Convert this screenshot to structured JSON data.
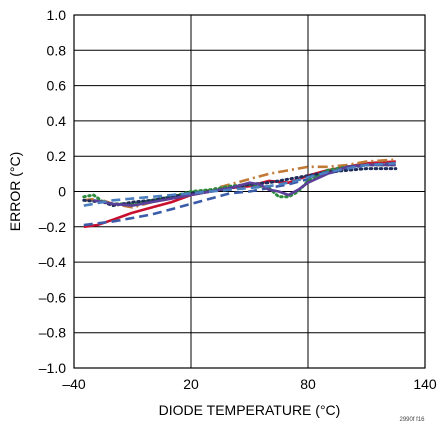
{
  "chart_data": {
    "type": "line",
    "xlabel": "DIODE TEMPERATURE (°C)",
    "ylabel": "ERROR (°C)",
    "xlim": [
      -40,
      140
    ],
    "ylim": [
      -1.0,
      1.0
    ],
    "xticks": [
      -40,
      20,
      80,
      140
    ],
    "xtick_labels": [
      "–40",
      "20",
      "80",
      "140"
    ],
    "yticks": [
      1.0,
      0.8,
      0.6,
      0.4,
      0.2,
      0,
      -0.2,
      -0.4,
      -0.6,
      -0.8,
      -1.0
    ],
    "ytick_labels": [
      "1.0",
      "0.8",
      "0.6",
      "0.4",
      "0.2",
      "0",
      "–0.2",
      "–0.4",
      "–0.6",
      "–0.8",
      "–1.0"
    ],
    "grid": true,
    "watermark": "2990f f16",
    "series": [
      {
        "color": "#c8102e",
        "style": "solid",
        "x": [
          -35,
          -28,
          -20,
          -10,
          0,
          10,
          20,
          30,
          40,
          50,
          60,
          70,
          80,
          90,
          100,
          110,
          125
        ],
        "y": [
          -0.2,
          -0.19,
          -0.16,
          -0.12,
          -0.09,
          -0.06,
          -0.02,
          0.0,
          0.02,
          0.03,
          0.06,
          0.05,
          0.09,
          0.12,
          0.14,
          0.16,
          0.17
        ]
      },
      {
        "color": "#3a5ba8",
        "style": "dashed",
        "x": [
          -35,
          -20,
          -10,
          0,
          10,
          20,
          30,
          40,
          50,
          60,
          70,
          80,
          90,
          100,
          110,
          125
        ],
        "y": [
          -0.19,
          -0.17,
          -0.15,
          -0.13,
          -0.1,
          -0.07,
          -0.04,
          -0.01,
          0.0,
          0.02,
          0.04,
          0.07,
          0.1,
          0.13,
          0.15,
          0.16
        ]
      },
      {
        "color": "#c07a35",
        "style": "dashdot",
        "x": [
          -35,
          -28,
          -20,
          -10,
          0,
          10,
          20,
          30,
          40,
          50,
          60,
          70,
          80,
          90,
          100,
          110,
          125
        ],
        "y": [
          -0.05,
          -0.04,
          -0.07,
          -0.09,
          -0.06,
          -0.04,
          -0.02,
          0.01,
          0.04,
          0.07,
          0.1,
          0.12,
          0.14,
          0.14,
          0.15,
          0.17,
          0.18
        ]
      },
      {
        "color": "#2e8b3e",
        "style": "dotted",
        "x": [
          -35,
          -30,
          -25,
          -20,
          -10,
          0,
          10,
          20,
          30,
          40,
          50,
          60,
          65,
          70,
          75,
          80,
          90,
          100,
          110,
          125
        ],
        "y": [
          -0.03,
          -0.02,
          -0.06,
          -0.07,
          -0.07,
          -0.05,
          -0.03,
          0.0,
          0.01,
          0.03,
          0.04,
          0.02,
          -0.03,
          -0.03,
          0.0,
          0.06,
          0.12,
          0.14,
          0.15,
          0.15
        ]
      },
      {
        "color": "#1f2d5c",
        "style": "dotted",
        "x": [
          -35,
          -25,
          -20,
          -10,
          0,
          10,
          20,
          30,
          40,
          50,
          60,
          70,
          80,
          90,
          100,
          110,
          125
        ],
        "y": [
          -0.05,
          -0.06,
          -0.08,
          -0.06,
          -0.05,
          -0.03,
          -0.01,
          0.0,
          0.02,
          0.04,
          0.05,
          0.07,
          0.09,
          0.11,
          0.12,
          0.13,
          0.13
        ]
      },
      {
        "color": "#5b3f9a",
        "style": "solid",
        "x": [
          -30,
          -20,
          -10,
          0,
          10,
          20,
          30,
          40,
          50,
          55,
          60,
          65,
          70,
          75,
          80,
          90,
          100,
          110,
          125
        ],
        "y": [
          -0.05,
          -0.07,
          -0.08,
          -0.06,
          -0.04,
          -0.02,
          0.0,
          0.02,
          0.05,
          0.04,
          0.01,
          0.0,
          -0.02,
          0.01,
          0.05,
          0.1,
          0.14,
          0.15,
          0.15
        ]
      },
      {
        "color": "#4a7fc0",
        "style": "dashed",
        "x": [
          -35,
          -30,
          -20,
          -10,
          0,
          10,
          20,
          30,
          40,
          50,
          60,
          70,
          80,
          90,
          100,
          110,
          125
        ],
        "y": [
          -0.08,
          -0.07,
          -0.05,
          -0.04,
          -0.03,
          -0.02,
          -0.01,
          0.0,
          0.01,
          0.02,
          0.03,
          0.05,
          0.08,
          0.11,
          0.13,
          0.15,
          0.16
        ]
      }
    ]
  }
}
